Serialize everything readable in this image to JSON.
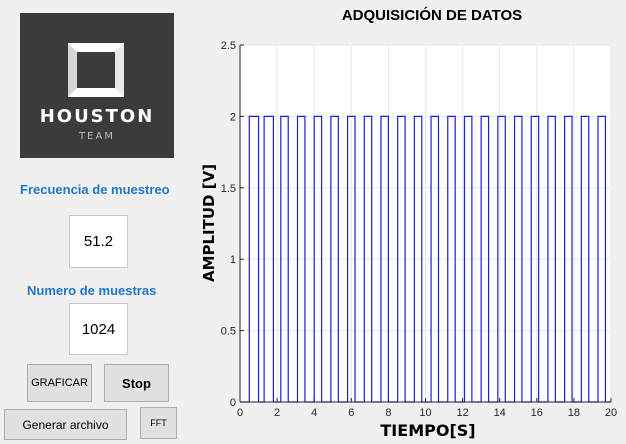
{
  "logo": {
    "name": "HOUSTON",
    "sub": "TEAM"
  },
  "controls": {
    "freq_label": "Frecuencia de muestreo",
    "freq_value": "51.2",
    "samples_label": "Numero de muestras",
    "samples_value": "1024",
    "graficar": "GRAFICAR",
    "stop": "Stop",
    "generar": "Generar archivo",
    "fft": "FFT"
  },
  "colors": {
    "accent": "#1f77c9",
    "series": "#1f1fd6"
  },
  "chart_data": {
    "type": "line",
    "title": "ADQUISICIÓN DE DATOS",
    "xlabel": "TIEMPO[S]",
    "ylabel": "AMPLITUD [V]",
    "xlim": [
      0,
      20
    ],
    "ylim": [
      0,
      2.5
    ],
    "xticks": [
      "0",
      "2",
      "4",
      "6",
      "8",
      "10",
      "12",
      "14",
      "16",
      "18",
      "20"
    ],
    "yticks": [
      "0",
      "0.5",
      "1",
      "1.5",
      "2",
      "2.5"
    ],
    "grid": true,
    "series": [
      {
        "high": 2,
        "low": 0,
        "pulses": [
          [
            0.5,
            1.0
          ],
          [
            1.3,
            1.8
          ],
          [
            2.2,
            2.6
          ],
          [
            3.1,
            3.5
          ],
          [
            4.0,
            4.4
          ],
          [
            4.9,
            5.3
          ],
          [
            5.8,
            6.2
          ],
          [
            6.7,
            7.1
          ],
          [
            7.6,
            8.0
          ],
          [
            8.5,
            8.9
          ],
          [
            9.4,
            9.8
          ],
          [
            10.3,
            10.7
          ],
          [
            11.2,
            11.6
          ],
          [
            12.1,
            12.5
          ],
          [
            13.0,
            13.4
          ],
          [
            13.9,
            14.3
          ],
          [
            14.8,
            15.2
          ],
          [
            15.7,
            16.1
          ],
          [
            16.6,
            17.0
          ],
          [
            17.5,
            17.9
          ],
          [
            18.4,
            18.8
          ],
          [
            19.3,
            19.7
          ]
        ]
      }
    ]
  }
}
